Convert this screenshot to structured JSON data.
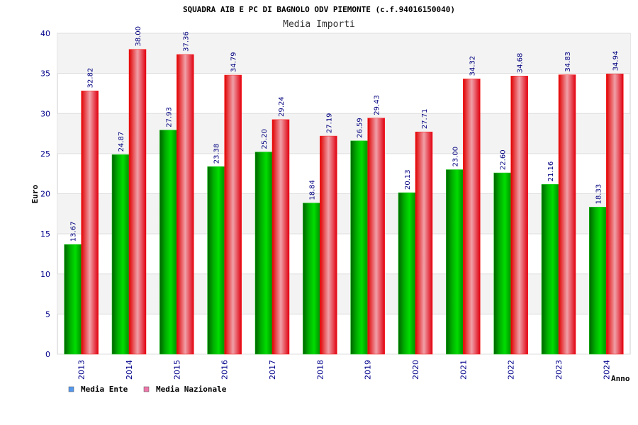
{
  "colors": {
    "ente": "#00c800",
    "nazionale": "#ff1a1a",
    "legend_ente": "#5599ee",
    "legend_nazionale": "#ee77aa"
  },
  "chart_data": {
    "type": "bar",
    "title": "SQUADRA AIB E PC DI BAGNOLO ODV PIEMONTE (c.f.94016150040)",
    "subtitle": "Media Importi",
    "ylabel": "Euro",
    "xlabel": "Anno",
    "ylim": [
      0,
      40
    ],
    "yticks": [
      "0",
      "5",
      "10",
      "15",
      "20",
      "25",
      "30",
      "35",
      "40"
    ],
    "grid": true,
    "legend_position": "bottom-left",
    "categories": [
      "2013",
      "2014",
      "2015",
      "2016",
      "2017",
      "2018",
      "2019",
      "2020",
      "2021",
      "2022",
      "2023",
      "2024"
    ],
    "series": [
      {
        "name": "Media Ente",
        "values": [
          13.67,
          24.87,
          27.93,
          23.38,
          25.2,
          18.84,
          26.59,
          20.13,
          23.0,
          22.6,
          21.16,
          18.33
        ],
        "labels": [
          "13.67",
          "24.87",
          "27.93",
          "23.38",
          "25.20",
          "18.84",
          "26.59",
          "20.13",
          "23.00",
          "22.60",
          "21.16",
          "18.33"
        ]
      },
      {
        "name": "Media Nazionale",
        "values": [
          32.82,
          38.0,
          37.36,
          34.79,
          29.24,
          27.19,
          29.43,
          27.71,
          34.32,
          34.68,
          34.83,
          34.94
        ],
        "labels": [
          "32.82",
          "38.00",
          "37.36",
          "34.79",
          "29.24",
          "27.19",
          "29.43",
          "27.71",
          "34.32",
          "34.68",
          "34.83",
          "34.94"
        ]
      }
    ]
  }
}
